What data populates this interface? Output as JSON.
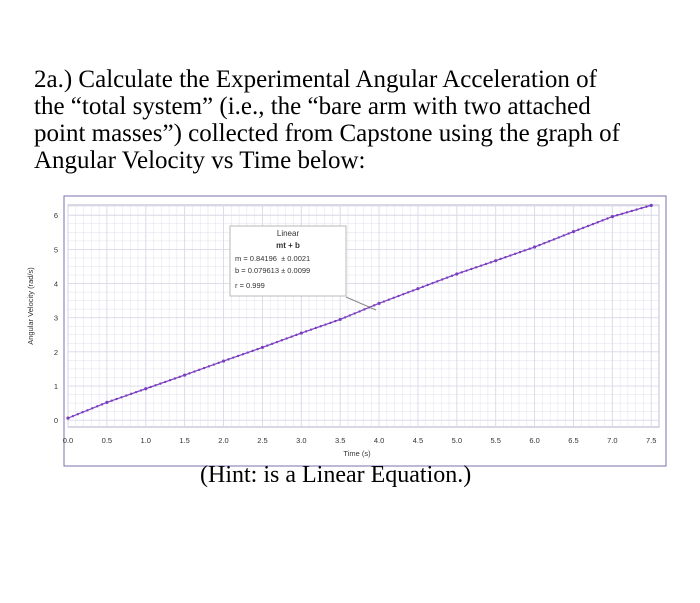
{
  "question": {
    "lines": [
      "2a.) Calculate the Experimental Angular Acceleration of",
      "the “total system” (i.e., the “bare arm with two attached",
      "point masses”) collected from Capstone using the graph of",
      "Angular Velocity vs Time below:"
    ]
  },
  "hint": "(Hint: is a Linear Equation.)",
  "colors": {
    "series": "#7a3fc0",
    "grid": "#d8d8e8",
    "frame": "#7b6fb0"
  },
  "chart_data": {
    "type": "scatter",
    "xlabel": "Time (s)",
    "ylabel": "Angular Velocity (rad/s)",
    "xlim": [
      0,
      7.6
    ],
    "ylim": [
      -0.2,
      6.3
    ],
    "xticks": [
      "0.0",
      "0.5",
      "1.0",
      "1.5",
      "2.0",
      "2.5",
      "3.0",
      "3.5",
      "4.0",
      "4.5",
      "5.0",
      "5.5",
      "6.0",
      "6.5",
      "7.0",
      "7.5"
    ],
    "yticks": [
      "0",
      "1",
      "2",
      "3",
      "4",
      "5",
      "6"
    ],
    "grid": true,
    "series": [
      {
        "x": [
          0.0,
          0.5,
          1.0,
          1.5,
          2.0,
          2.5,
          3.0,
          3.5,
          4.0,
          4.5,
          5.0,
          5.5,
          6.0,
          6.5,
          7.0,
          7.5
        ],
        "y": [
          0.06,
          0.52,
          0.92,
          1.32,
          1.73,
          2.13,
          2.55,
          2.95,
          3.42,
          3.85,
          4.28,
          4.67,
          5.07,
          5.52,
          5.96,
          6.29
        ]
      }
    ],
    "annotation": {
      "title": "Linear",
      "equation": "mt + b",
      "m": "m = 0.84196  ± 0.0021",
      "b": "b = 0.079613 ± 0.0099",
      "r": "r = 0.999"
    }
  }
}
